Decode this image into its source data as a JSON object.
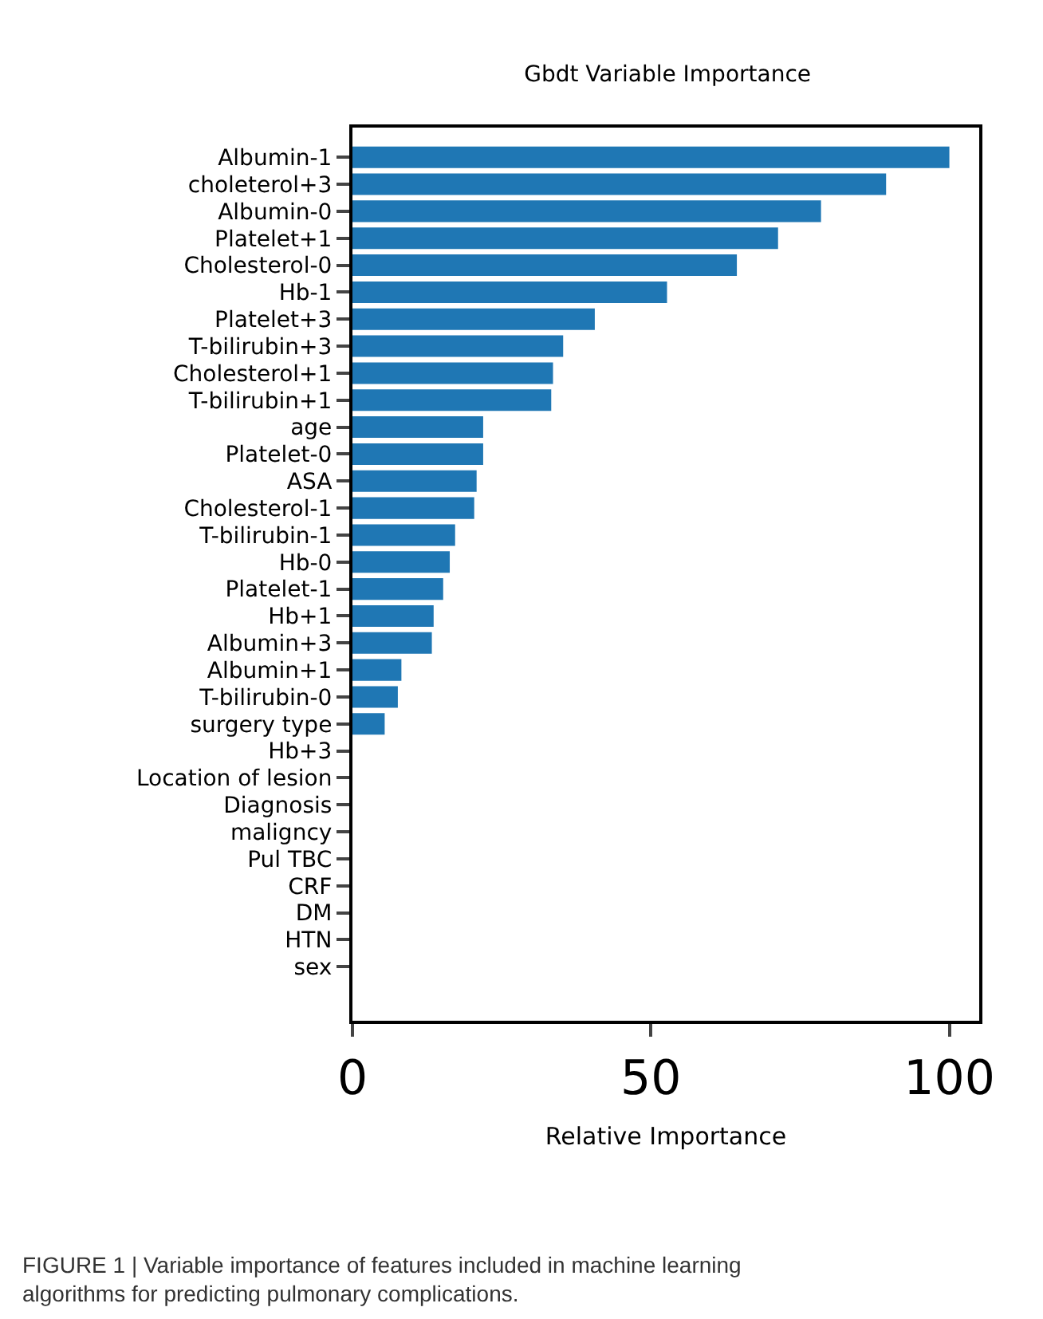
{
  "chart_data": {
    "type": "bar",
    "orientation": "horizontal",
    "title": "Gbdt Variable Importance",
    "xlabel": "Relative Importance",
    "categories": [
      "Albumin-1",
      "choleterol+3",
      "Albumin-0",
      "Platelet+1",
      "Cholesterol-0",
      "Hb-1",
      "Platelet+3",
      "T-bilirubin+3",
      "Cholesterol+1",
      "T-bilirubin+1",
      "age",
      "Platelet-0",
      "ASA",
      "Cholesterol-1",
      "T-bilirubin-1",
      "Hb-0",
      "Platelet-1",
      "Hb+1",
      "Albumin+3",
      "Albumin+1",
      "T-bilirubin-0",
      "surgery type",
      "Hb+3",
      "Location of lesion",
      "Diagnosis",
      "maligncy",
      "Pul TBC",
      "CRF",
      "DM",
      "HTN",
      "sex"
    ],
    "values": [
      100,
      89.4,
      78.5,
      71.3,
      64.4,
      52.7,
      40.6,
      35.3,
      33.6,
      33.3,
      21.9,
      21.9,
      20.8,
      20.4,
      17.2,
      16.3,
      15.2,
      13.6,
      13.3,
      8.2,
      7.6,
      5.4,
      0,
      0,
      0,
      0,
      0,
      0,
      0,
      0,
      0
    ],
    "color": "#1f77b4",
    "xlim": [
      0,
      105
    ],
    "xticks": [
      0,
      50,
      100
    ],
    "annotations": [
      "FIGURE 1 | Variable importance of features included in machine learning algorithms for predicting pulmonary complications."
    ]
  }
}
